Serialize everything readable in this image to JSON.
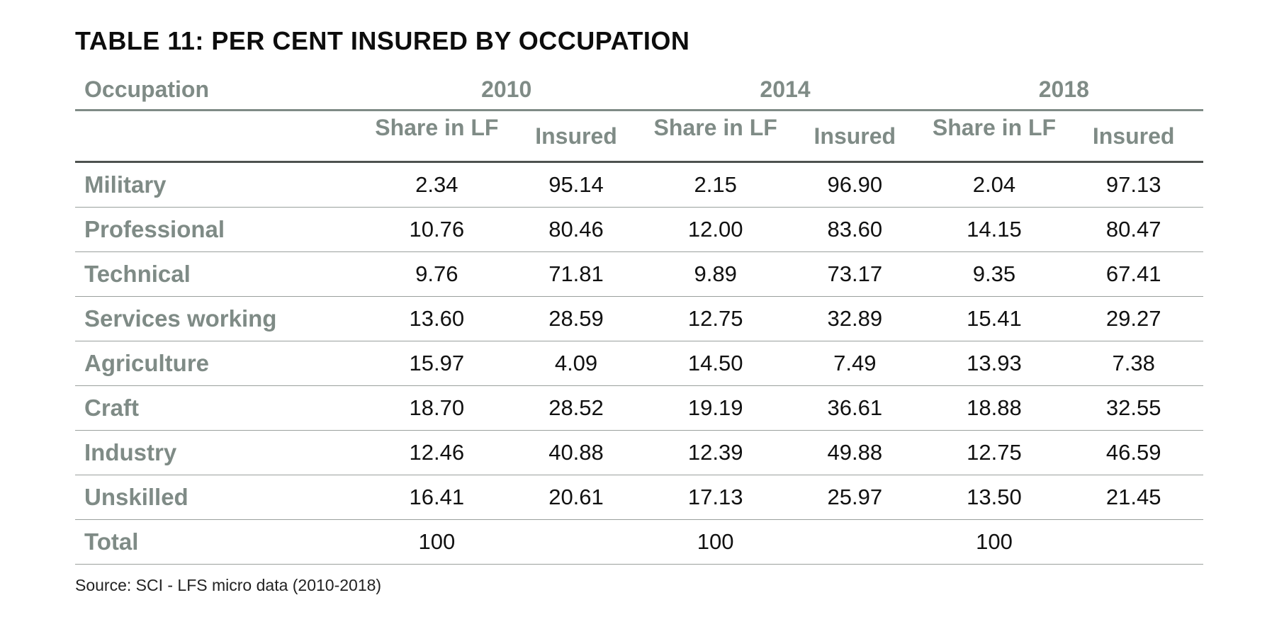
{
  "title": "TABLE 11: PER CENT INSURED BY OCCUPATION",
  "table": {
    "occupation_header": "Occupation",
    "years": [
      "2010",
      "2014",
      "2018"
    ],
    "sub_headers": {
      "share": "Share in LF",
      "insured": "Insured"
    },
    "rows": [
      {
        "occupation": "Military",
        "values": [
          "2.34",
          "95.14",
          "2.15",
          "96.90",
          "2.04",
          "97.13"
        ]
      },
      {
        "occupation": "Professional",
        "values": [
          "10.76",
          "80.46",
          "12.00",
          "83.60",
          "14.15",
          "80.47"
        ]
      },
      {
        "occupation": "Technical",
        "values": [
          "9.76",
          "71.81",
          "9.89",
          "73.17",
          "9.35",
          "67.41"
        ]
      },
      {
        "occupation": "Services working",
        "values": [
          "13.60",
          "28.59",
          "12.75",
          "32.89",
          "15.41",
          "29.27"
        ]
      },
      {
        "occupation": "Agriculture",
        "values": [
          "15.97",
          "4.09",
          "14.50",
          "7.49",
          "13.93",
          "7.38"
        ]
      },
      {
        "occupation": "Craft",
        "values": [
          "18.70",
          "28.52",
          "19.19",
          "36.61",
          "18.88",
          "32.55"
        ]
      },
      {
        "occupation": "Industry",
        "values": [
          "12.46",
          "40.88",
          "12.39",
          "49.88",
          "12.75",
          "46.59"
        ]
      },
      {
        "occupation": "Unskilled",
        "values": [
          "16.41",
          "20.61",
          "17.13",
          "25.97",
          "13.50",
          "21.45"
        ]
      },
      {
        "occupation": "Total",
        "values": [
          "100",
          "",
          "100",
          "",
          "100",
          ""
        ]
      }
    ]
  },
  "source": "Source:  SCI - LFS micro data  (2010-2018)",
  "colors": {
    "header_text": "#7f8b86",
    "rule": "#9aa09d",
    "header_rule": "#4d524f"
  }
}
